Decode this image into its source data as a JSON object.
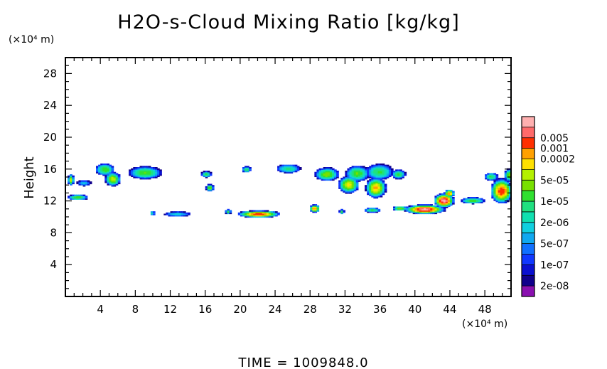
{
  "chart_data": {
    "type": "heatmap",
    "title": "H2O-s-Cloud Mixing Ratio [kg/kg]",
    "ylabel": "Height",
    "y_unit_label": "(×10⁴ m)",
    "x_unit_label": "(×10⁴ m)",
    "x_ticks": [
      "4",
      "8",
      "12",
      "16",
      "20",
      "24",
      "28",
      "32",
      "36",
      "40",
      "44",
      "48"
    ],
    "y_ticks": [
      "4",
      "8",
      "12",
      "16",
      "20",
      "24",
      "28"
    ],
    "xlim": [
      0,
      51
    ],
    "ylim": [
      0,
      30
    ],
    "colorbar": {
      "scale": "log",
      "levels": [
        {
          "label": "",
          "color": "#ffb0b0"
        },
        {
          "label": "0.005",
          "color": "#ff6a6a"
        },
        {
          "label": "0.001",
          "color": "#ff3000"
        },
        {
          "label": "0.0002",
          "color": "#ffa000"
        },
        {
          "label": "",
          "color": "#ffe000"
        },
        {
          "label": "5e-05",
          "color": "#b4f000"
        },
        {
          "label": "",
          "color": "#78e000"
        },
        {
          "label": "1e-05",
          "color": "#30e030"
        },
        {
          "label": "",
          "color": "#20e080"
        },
        {
          "label": "2e-06",
          "color": "#10e0b0"
        },
        {
          "label": "",
          "color": "#10d0e0"
        },
        {
          "label": "5e-07",
          "color": "#10a8f0"
        },
        {
          "label": "",
          "color": "#1070ff"
        },
        {
          "label": "1e-07",
          "color": "#1038ff"
        },
        {
          "label": "",
          "color": "#0a10d0"
        },
        {
          "label": "2e-08",
          "color": "#10008c"
        },
        {
          "label": "",
          "color": "#8a10b0"
        }
      ]
    },
    "blobs": [
      {
        "x": 0.5,
        "y": 14.6,
        "rx": 0.35,
        "ry": 0.7,
        "peak": 0.65
      },
      {
        "x": 2.0,
        "y": 14.2,
        "rx": 0.8,
        "ry": 0.35,
        "peak": 0.3
      },
      {
        "x": 1.3,
        "y": 12.4,
        "rx": 1.2,
        "ry": 0.35,
        "peak": 0.55
      },
      {
        "x": 4.4,
        "y": 15.9,
        "rx": 1.1,
        "ry": 0.75,
        "peak": 0.55
      },
      {
        "x": 5.3,
        "y": 14.7,
        "rx": 0.9,
        "ry": 0.9,
        "peak": 0.65
      },
      {
        "x": 9.0,
        "y": 15.5,
        "rx": 1.9,
        "ry": 0.8,
        "peak": 0.55
      },
      {
        "x": 9.8,
        "y": 10.4,
        "rx": 0.3,
        "ry": 0.3,
        "peak": 0.4
      },
      {
        "x": 12.7,
        "y": 10.3,
        "rx": 1.5,
        "ry": 0.3,
        "peak": 0.35
      },
      {
        "x": 16.0,
        "y": 15.3,
        "rx": 0.6,
        "ry": 0.4,
        "peak": 0.5
      },
      {
        "x": 16.4,
        "y": 13.6,
        "rx": 0.45,
        "ry": 0.45,
        "peak": 0.6
      },
      {
        "x": 20.6,
        "y": 15.9,
        "rx": 0.5,
        "ry": 0.4,
        "peak": 0.5
      },
      {
        "x": 22.0,
        "y": 10.3,
        "rx": 2.5,
        "ry": 0.45,
        "peak": 0.85
      },
      {
        "x": 18.5,
        "y": 10.6,
        "rx": 0.35,
        "ry": 0.3,
        "peak": 0.5
      },
      {
        "x": 25.4,
        "y": 16.0,
        "rx": 1.4,
        "ry": 0.55,
        "peak": 0.45
      },
      {
        "x": 29.8,
        "y": 15.3,
        "rx": 1.4,
        "ry": 0.85,
        "peak": 0.6
      },
      {
        "x": 28.4,
        "y": 11.0,
        "rx": 0.6,
        "ry": 0.5,
        "peak": 0.8
      },
      {
        "x": 31.5,
        "y": 10.6,
        "rx": 0.3,
        "ry": 0.3,
        "peak": 0.5
      },
      {
        "x": 33.3,
        "y": 15.4,
        "rx": 1.4,
        "ry": 1.0,
        "peak": 0.55
      },
      {
        "x": 32.3,
        "y": 14.0,
        "rx": 1.2,
        "ry": 1.1,
        "peak": 0.7
      },
      {
        "x": 35.8,
        "y": 15.6,
        "rx": 1.6,
        "ry": 1.0,
        "peak": 0.5
      },
      {
        "x": 35.4,
        "y": 13.6,
        "rx": 1.2,
        "ry": 1.3,
        "peak": 0.75
      },
      {
        "x": 38.0,
        "y": 15.3,
        "rx": 0.8,
        "ry": 0.6,
        "peak": 0.5
      },
      {
        "x": 35.0,
        "y": 10.8,
        "rx": 1.0,
        "ry": 0.3,
        "peak": 0.5
      },
      {
        "x": 38.2,
        "y": 11.0,
        "rx": 0.9,
        "ry": 0.3,
        "peak": 0.6
      },
      {
        "x": 41.0,
        "y": 10.9,
        "rx": 2.4,
        "ry": 0.6,
        "peak": 0.95
      },
      {
        "x": 43.2,
        "y": 12.0,
        "rx": 1.2,
        "ry": 0.9,
        "peak": 0.95
      },
      {
        "x": 43.8,
        "y": 12.9,
        "rx": 0.6,
        "ry": 0.5,
        "peak": 0.8
      },
      {
        "x": 46.5,
        "y": 12.0,
        "rx": 1.4,
        "ry": 0.4,
        "peak": 0.55
      },
      {
        "x": 48.6,
        "y": 15.0,
        "rx": 0.8,
        "ry": 0.5,
        "peak": 0.5
      },
      {
        "x": 49.8,
        "y": 13.2,
        "rx": 1.3,
        "ry": 1.6,
        "peak": 0.85
      },
      {
        "x": 50.7,
        "y": 15.2,
        "rx": 0.6,
        "ry": 0.8,
        "peak": 0.6
      }
    ]
  },
  "footer": {
    "time_label": "TIME = 1009848.0"
  }
}
